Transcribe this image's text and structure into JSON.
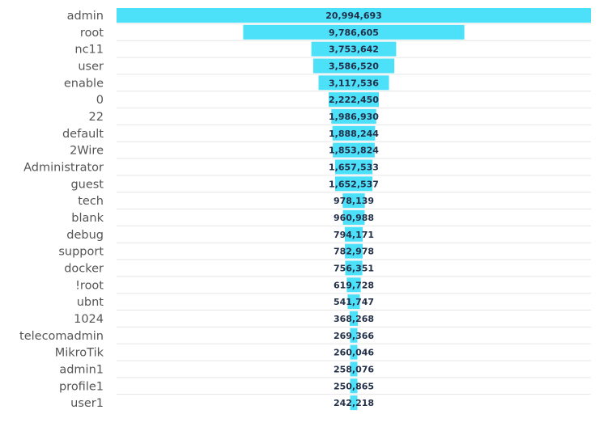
{
  "chart_data": {
    "type": "funnel",
    "categories": [
      "admin",
      "root",
      "nc11",
      "user",
      "enable",
      "0",
      "22",
      "default",
      "2Wire",
      "Administrator",
      "guest",
      "tech",
      "blank",
      "debug",
      "support",
      "docker",
      "!root",
      "ubnt",
      "1024",
      "telecomadmin",
      "MikroTik",
      "admin1",
      "profile1",
      "user1"
    ],
    "values": [
      20994693,
      9786605,
      3753642,
      3586520,
      3117536,
      2222450,
      1986930,
      1888244,
      1853824,
      1657533,
      1652537,
      978139,
      960988,
      794171,
      782978,
      756351,
      619728,
      541747,
      368268,
      269366,
      260046,
      258076,
      250865,
      242218
    ],
    "data_labels": [
      "20,994,693",
      "9,786,605",
      "3,753,642",
      "3,586,520",
      "3,117,536",
      "2,222,450",
      "1,986,930",
      "1,888,244",
      "1,853,824",
      "1,657,533",
      "1,652,537",
      "978,139",
      "960,988",
      "794,171",
      "782,978",
      "756,351",
      "619,728",
      "541,747",
      "368,268",
      "269,366",
      "260,046",
      "258,076",
      "250,865",
      "242,218"
    ],
    "bar_color": "#4DE0F9",
    "grid": true
  }
}
